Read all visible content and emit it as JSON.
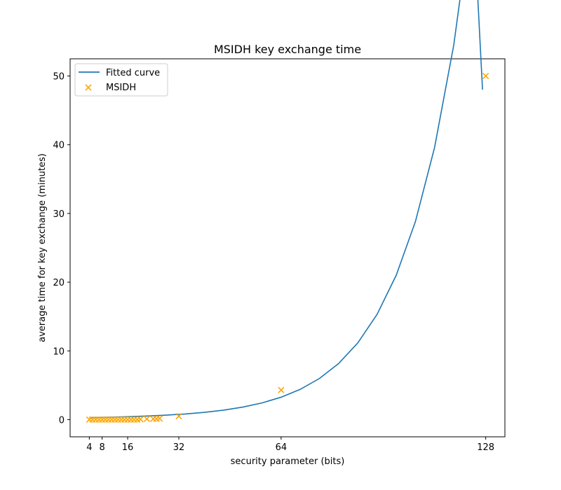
{
  "chart_data": {
    "type": "scatter",
    "title": "MSIDH key exchange time",
    "xlabel": "security parameter (bits)",
    "ylabel": "average time for key exchange (minutes)",
    "xlim": [
      -2,
      134
    ],
    "ylim": [
      -2.5,
      52.5
    ],
    "xticks": [
      4,
      8,
      16,
      32,
      64,
      128
    ],
    "yticks": [
      0,
      10,
      20,
      30,
      40,
      50
    ],
    "grid": false,
    "legend_position": "top-left",
    "series": [
      {
        "name": "Fitted curve",
        "kind": "line",
        "color": "#1f77b4",
        "x": [
          4,
          10,
          16,
          22,
          28,
          34,
          40,
          46,
          52,
          58,
          64,
          70,
          76,
          82,
          88,
          94,
          100,
          106,
          112,
          118,
          124,
          127
        ],
        "y": [
          0.29,
          0.35,
          0.42,
          0.52,
          0.65,
          0.82,
          1.06,
          1.38,
          1.82,
          2.43,
          3.26,
          4.41,
          5.99,
          8.17,
          11.17,
          15.3,
          21.0,
          28.8,
          39.6,
          54.5,
          75.0,
          48.0
        ]
      },
      {
        "name": "MSIDH",
        "kind": "scatter",
        "marker": "x",
        "color": "#ffa500",
        "x": [
          4,
          5,
          6,
          7,
          8,
          9,
          10,
          11,
          12,
          13,
          14,
          15,
          16,
          17,
          18,
          19,
          20,
          22,
          24,
          25,
          26,
          32,
          64,
          128
        ],
        "y": [
          0.0,
          0.0,
          0.0,
          0.0,
          0.0,
          0.0,
          0.0,
          0.0,
          0.0,
          0.0,
          0.0,
          0.0,
          0.0,
          0.0,
          0.0,
          0.0,
          0.05,
          0.1,
          0.1,
          0.12,
          0.15,
          0.5,
          4.3,
          50.0
        ]
      }
    ]
  }
}
